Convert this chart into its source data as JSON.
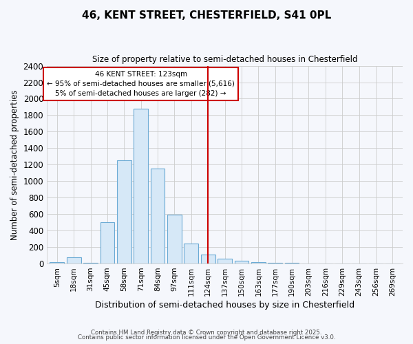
{
  "title_line1": "46, KENT STREET, CHESTERFIELD, S41 0PL",
  "title_line2": "Size of property relative to semi-detached houses in Chesterfield",
  "xlabel": "Distribution of semi-detached houses by size in Chesterfield",
  "ylabel": "Number of semi-detached properties",
  "bin_labels": [
    "5sqm",
    "18sqm",
    "31sqm",
    "45sqm",
    "58sqm",
    "71sqm",
    "84sqm",
    "97sqm",
    "111sqm",
    "124sqm",
    "137sqm",
    "150sqm",
    "163sqm",
    "177sqm",
    "190sqm",
    "203sqm",
    "216sqm",
    "229sqm",
    "243sqm",
    "256sqm",
    "269sqm"
  ],
  "bar_heights": [
    15,
    75,
    5,
    500,
    1250,
    1875,
    1150,
    590,
    245,
    110,
    60,
    35,
    20,
    5,
    5,
    0,
    0,
    0,
    0,
    0,
    0
  ],
  "bar_color": "#d6e8f7",
  "bar_edge_color": "#6aaad4",
  "vline_x_index": 9,
  "vline_color": "#cc0000",
  "property_label": "46 KENT STREET: 123sqm",
  "pct_smaller": "95% of semi-detached houses are smaller (5,616)",
  "pct_larger": "5% of semi-detached houses are larger (282)",
  "annotation_box_edge": "#cc0000",
  "ylim": [
    0,
    2400
  ],
  "yticks": [
    0,
    200,
    400,
    600,
    800,
    1000,
    1200,
    1400,
    1600,
    1800,
    2000,
    2200,
    2400
  ],
  "bg_color": "#f5f7fc",
  "grid_color": "#cccccc",
  "footer_line1": "Contains HM Land Registry data © Crown copyright and database right 2025.",
  "footer_line2": "Contains public sector information licensed under the Open Government Licence v3.0."
}
